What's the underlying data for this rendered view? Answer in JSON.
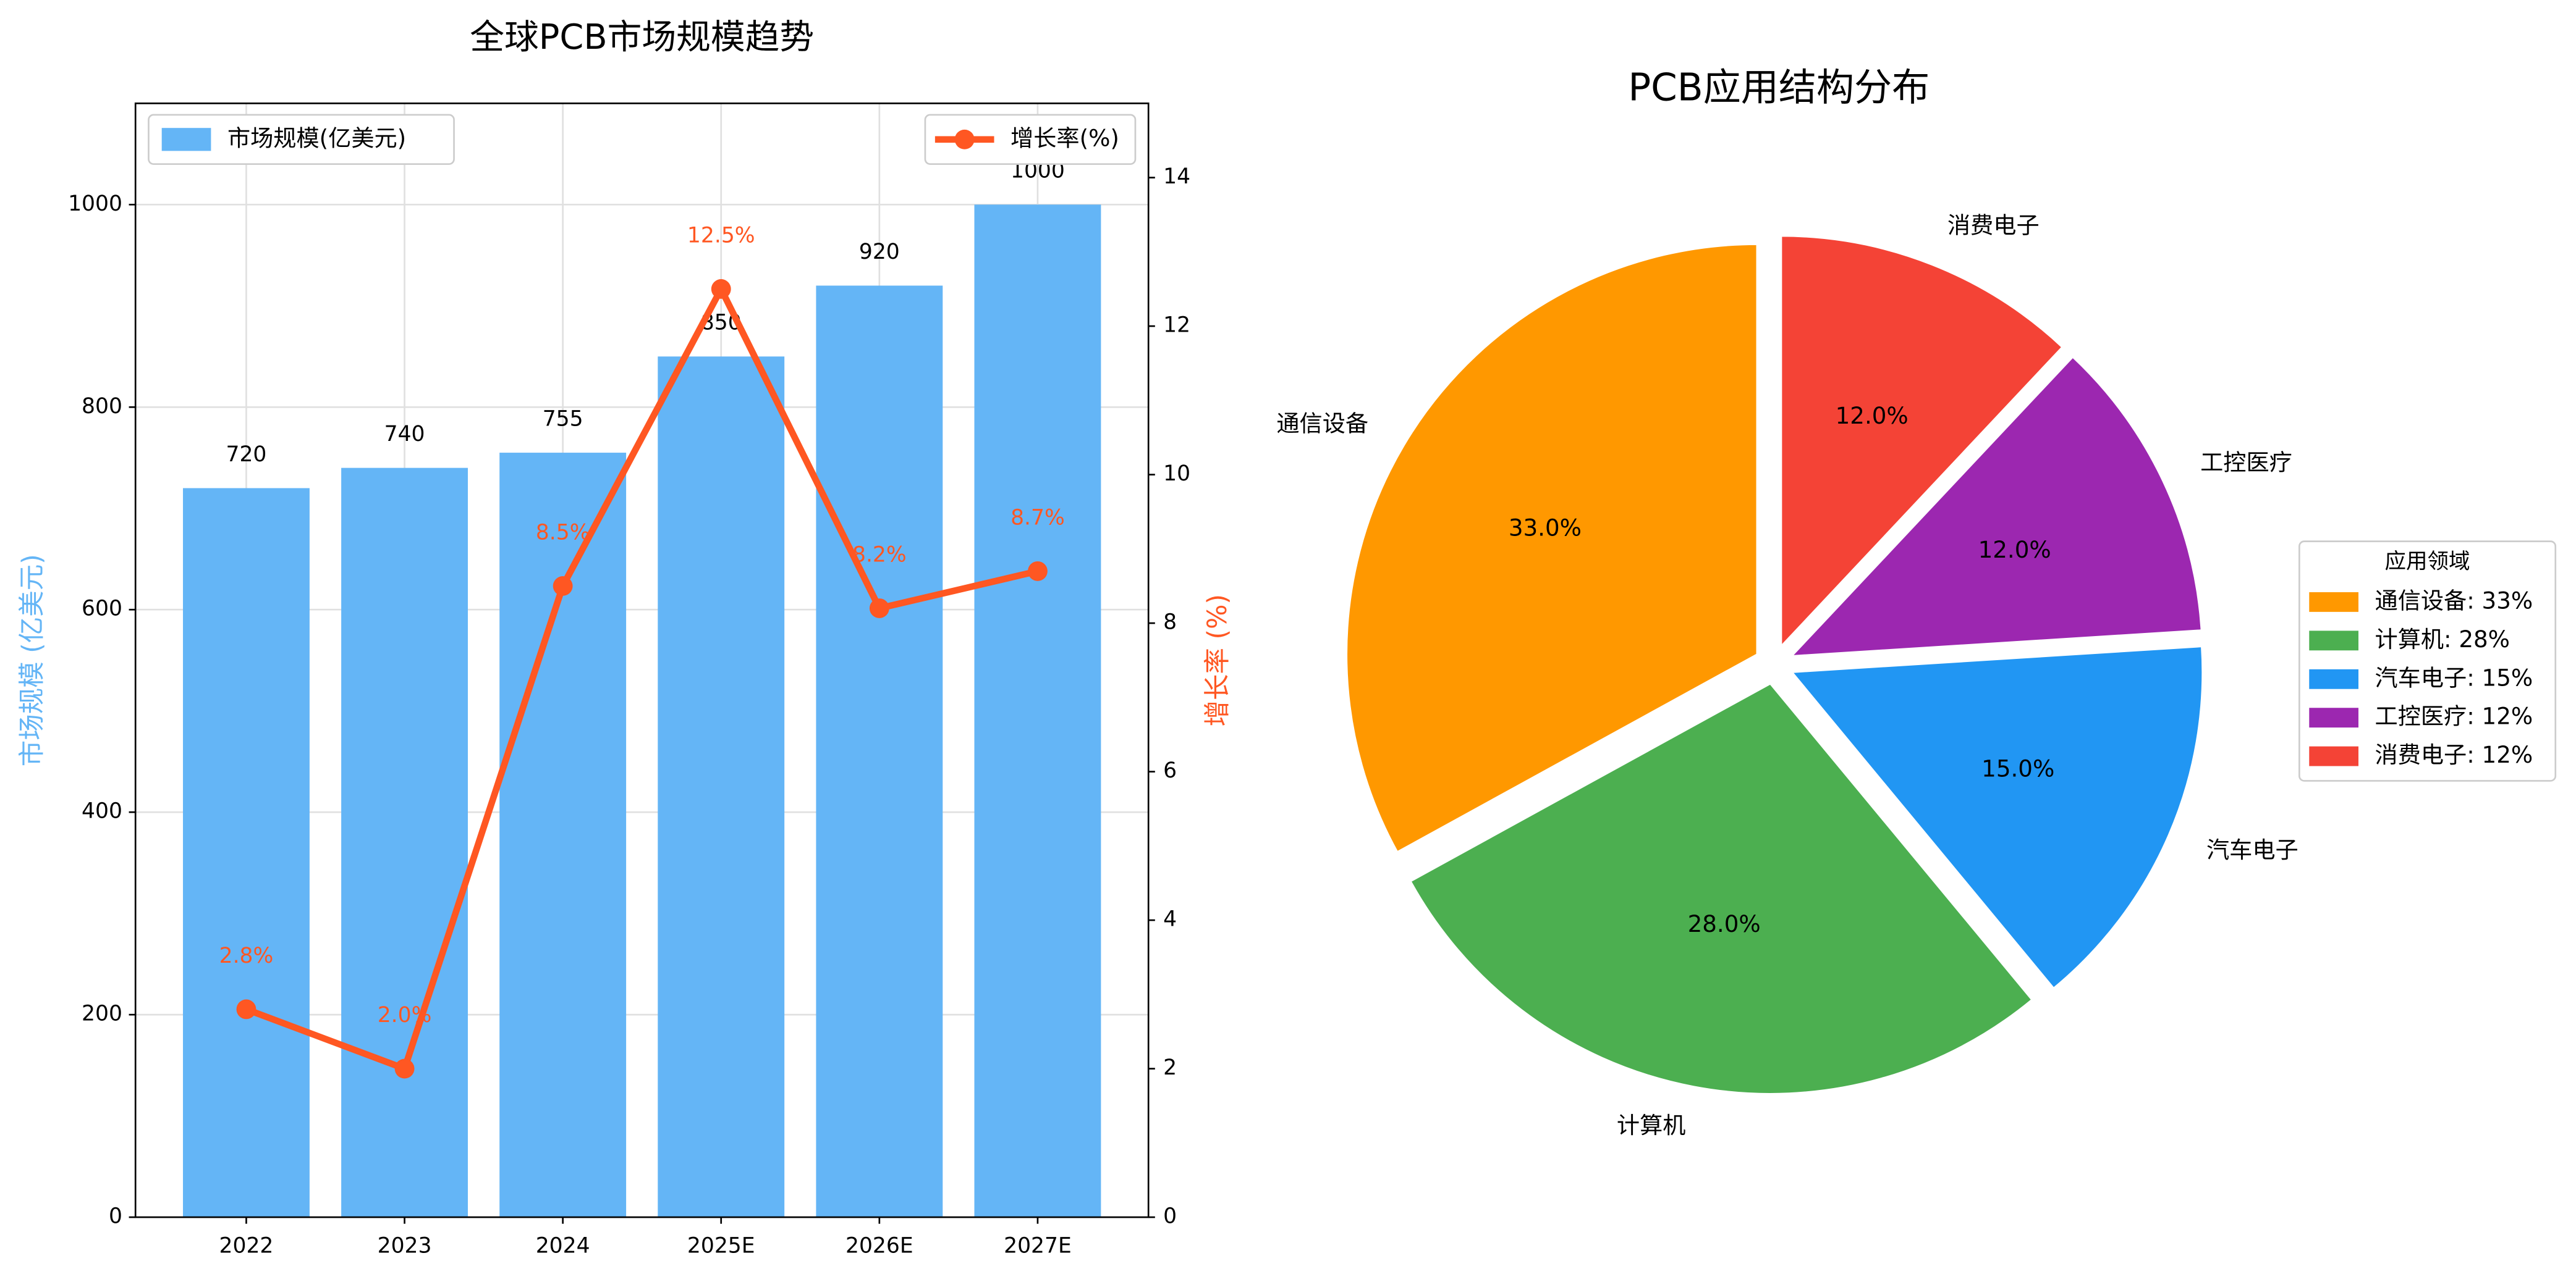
{
  "chart_data": [
    {
      "type": "bar",
      "title": "全球PCB市场规模趋势",
      "categories": [
        "2022",
        "2023",
        "2024",
        "2025E",
        "2026E",
        "2027E"
      ],
      "ylabel": "市场规模 (亿美元)",
      "y2label": "增长率 (%)",
      "series": [
        {
          "name": "市场规模(亿美元)",
          "type": "bar",
          "color": "#64b5f6",
          "values": [
            720,
            740,
            755,
            850,
            920,
            1000
          ],
          "legend_loc": "upper left"
        },
        {
          "name": "增长率(%)",
          "type": "line",
          "axis": "y2",
          "color": "#ff5722",
          "values": [
            2.8,
            2.0,
            8.5,
            12.5,
            8.2,
            8.7
          ],
          "value_labels": [
            "2.8%",
            "2.0%",
            "8.5%",
            "12.5%",
            "8.2%",
            "8.7%"
          ],
          "legend_loc": "upper right"
        }
      ],
      "ylim": [
        0,
        1100
      ],
      "yticks": [
        0,
        200,
        400,
        600,
        800,
        1000
      ],
      "y2lim": [
        0,
        15
      ],
      "y2ticks": [
        0,
        2,
        4,
        6,
        8,
        10,
        12,
        14
      ],
      "grid": true
    },
    {
      "type": "pie",
      "title": "PCB应用结构分布",
      "categories": [
        "通信设备",
        "计算机",
        "汽车电子",
        "工控医疗",
        "消费电子"
      ],
      "values": [
        33,
        28,
        15,
        12,
        12
      ],
      "value_labels": [
        "33.0%",
        "28.0%",
        "15.0%",
        "12.0%",
        "12.0%"
      ],
      "colors": [
        "#ff9800",
        "#4caf50",
        "#2196f3",
        "#9c27b0",
        "#f44336"
      ],
      "startangle": 90,
      "counterclock": true,
      "legend_title": "应用领域",
      "legend_labels": [
        "通信设备: 33%",
        "计算机: 28%",
        "汽车电子: 15%",
        "工控医疗: 12%",
        "消费电子: 12%"
      ],
      "legend_loc": "center right"
    }
  ]
}
